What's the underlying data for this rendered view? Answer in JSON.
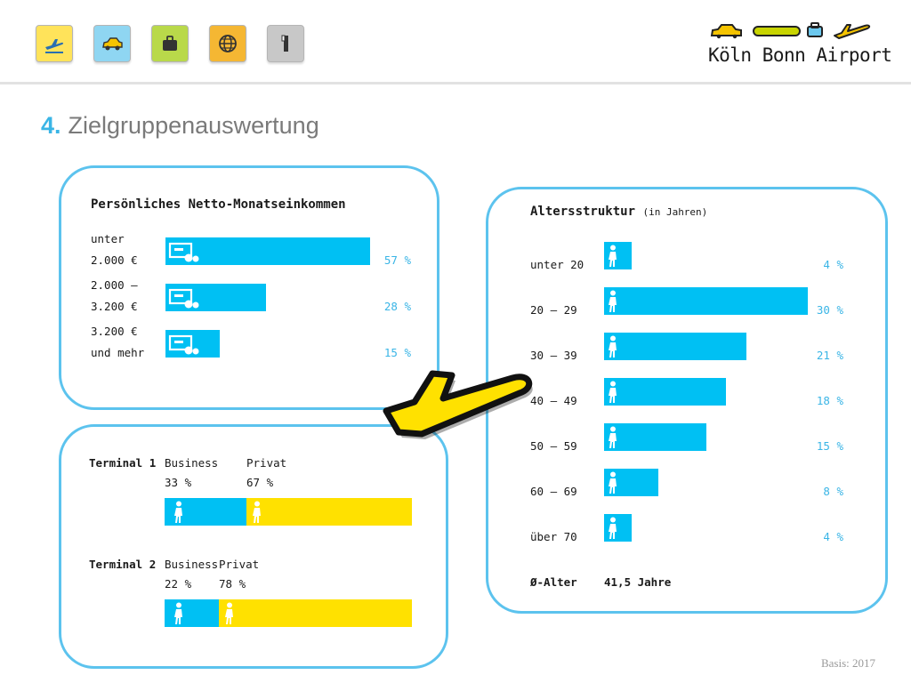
{
  "nav": {
    "icons": [
      {
        "name": "departures-plane-icon",
        "color": "#ffe35a"
      },
      {
        "name": "car-icon",
        "color": "#8fd6f2"
      },
      {
        "name": "suitcase-icon",
        "color": "#b9d94a"
      },
      {
        "name": "globe-icon",
        "color": "#f5b733"
      },
      {
        "name": "info-pillar-icon",
        "color": "#c8c8c8"
      }
    ]
  },
  "logo": {
    "text": "Köln Bonn Airport"
  },
  "page": {
    "number": "4.",
    "title": "Zielgruppenauswertung",
    "basis": "Basis: 2017"
  },
  "colors": {
    "blue": "#00c0f3",
    "yellow": "#ffe100",
    "frame": "#5cc3ee",
    "label_pct": "#3ab5e6"
  },
  "income": {
    "title": "Persönliches Netto-Monatseinkommen",
    "rows": [
      {
        "line1": "unter",
        "line2": "2.000 €",
        "pct": "57 %"
      },
      {
        "line1": "2.000 –",
        "line2": "3.200 €",
        "pct": "28 %"
      },
      {
        "line1": "3.200 €",
        "line2": "und mehr",
        "pct": "15 %"
      }
    ]
  },
  "terminals": [
    {
      "label": "Terminal 1",
      "business_label": "Business",
      "business_pct": "33 %",
      "private_label": "Privat",
      "private_pct": "67 %"
    },
    {
      "label": "Terminal 2",
      "business_label": "Business",
      "business_pct": "22 %",
      "private_label": "Privat",
      "private_pct": "78 %"
    }
  ],
  "age": {
    "title": "Altersstruktur",
    "title_note": "(in Jahren)",
    "rows": [
      {
        "label": "unter 20",
        "pct": "4 %"
      },
      {
        "label": "20 – 29",
        "pct": "30 %"
      },
      {
        "label": "30 – 39",
        "pct": "21 %"
      },
      {
        "label": "40 – 49",
        "pct": "18 %"
      },
      {
        "label": "50 – 59",
        "pct": "15 %"
      },
      {
        "label": "60 – 69",
        "pct": "8 %"
      },
      {
        "label": "über 70",
        "pct": "4 %"
      }
    ],
    "avg_label": "Ø-Alter",
    "avg_value": "41,5 Jahre"
  },
  "chart_data": [
    {
      "type": "bar",
      "title": "Persönliches Netto-Monatseinkommen",
      "categories": [
        "unter 2.000 €",
        "2.000 – 3.200 €",
        "3.200 € und mehr"
      ],
      "values": [
        57,
        28,
        15
      ],
      "unit": "%",
      "orientation": "horizontal"
    },
    {
      "type": "bar",
      "stacked": true,
      "orientation": "horizontal",
      "categories": [
        "Terminal 1",
        "Terminal 2"
      ],
      "series": [
        {
          "name": "Business",
          "values": [
            33,
            22
          ],
          "color": "#00c0f3"
        },
        {
          "name": "Privat",
          "values": [
            67,
            78
          ],
          "color": "#ffe100"
        }
      ],
      "unit": "%"
    },
    {
      "type": "bar",
      "title": "Altersstruktur (in Jahren)",
      "categories": [
        "unter 20",
        "20 – 29",
        "30 – 39",
        "40 – 49",
        "50 – 59",
        "60 – 69",
        "über 70"
      ],
      "values": [
        4,
        30,
        21,
        18,
        15,
        8,
        4
      ],
      "unit": "%",
      "orientation": "horizontal"
    }
  ]
}
